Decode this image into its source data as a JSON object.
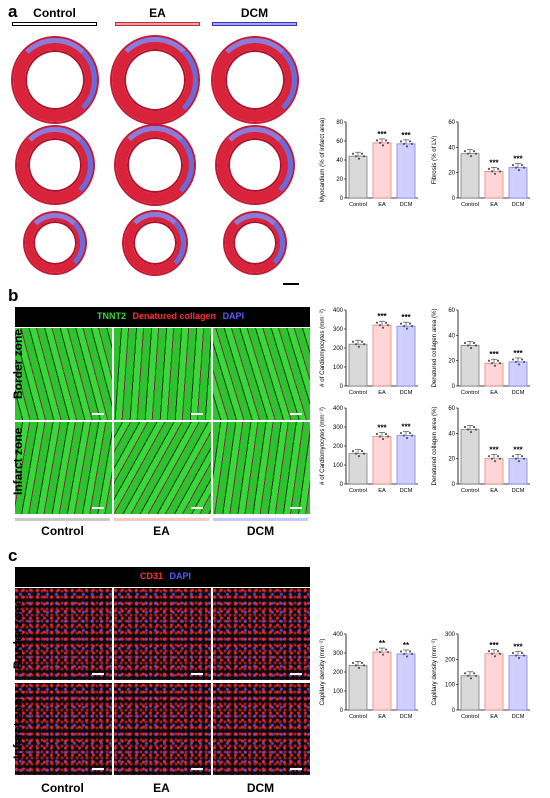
{
  "panels": {
    "a": "a",
    "b": "b",
    "c": "c"
  },
  "groups": {
    "control": "Control",
    "ea": "EA",
    "dcm": "DCM"
  },
  "colors": {
    "control": "#d9d9d9",
    "ea": "#ffd6d6",
    "dcm": "#cfd0ff",
    "control_edge": "#7f7f7f",
    "ea_edge": "#f08080",
    "dcm_edge": "#8080f0"
  },
  "legend_b": {
    "tnnt2": "TNNT2",
    "collagen": "Denatured collagen",
    "dapi": "DAPI"
  },
  "legend_c": {
    "cd31": "CD31",
    "dapi": "DAPI"
  },
  "zones": {
    "border": "Border zone",
    "infarct": "Infarct zone"
  },
  "chart_data": [
    {
      "type": "bar",
      "ylabel": "Myocardium (% of infarct area)",
      "ylim": [
        0,
        80
      ],
      "yticks": [
        0,
        20,
        40,
        60,
        80
      ],
      "categories": [
        "Control",
        "EA",
        "DCM"
      ],
      "values": [
        44,
        58,
        57
      ],
      "sig": [
        "",
        "***",
        "***"
      ]
    },
    {
      "type": "bar",
      "ylabel": "Fibrosis (% of LV)",
      "ylim": [
        0,
        60
      ],
      "yticks": [
        0,
        20,
        40,
        60
      ],
      "categories": [
        "Control",
        "EA",
        "DCM"
      ],
      "values": [
        35,
        21,
        24
      ],
      "sig": [
        "",
        "***",
        "***"
      ]
    },
    {
      "type": "bar",
      "ylabel": "# of Cardiomyocytes (mm⁻²)",
      "ylim": [
        0,
        400
      ],
      "yticks": [
        0,
        100,
        200,
        300,
        400
      ],
      "categories": [
        "Control",
        "EA",
        "DCM"
      ],
      "values": [
        220,
        320,
        315
      ],
      "sig": [
        "",
        "***",
        "***"
      ]
    },
    {
      "type": "bar",
      "ylabel": "Denatured collagen area (%)",
      "ylim": [
        0,
        60
      ],
      "yticks": [
        0,
        20,
        40,
        60
      ],
      "categories": [
        "Control",
        "EA",
        "DCM"
      ],
      "values": [
        32,
        18,
        19
      ],
      "sig": [
        "",
        "***",
        "***"
      ]
    },
    {
      "type": "bar",
      "ylabel": "# of Cardiomyocytes (mm⁻²)",
      "ylim": [
        0,
        400
      ],
      "yticks": [
        0,
        100,
        200,
        300,
        400
      ],
      "categories": [
        "Control",
        "EA",
        "DCM"
      ],
      "values": [
        160,
        250,
        255
      ],
      "sig": [
        "",
        "***",
        "***"
      ]
    },
    {
      "type": "bar",
      "ylabel": "Denatured collagen area (%)",
      "ylim": [
        0,
        60
      ],
      "yticks": [
        0,
        20,
        40,
        60
      ],
      "categories": [
        "Control",
        "EA",
        "DCM"
      ],
      "values": [
        43,
        20,
        20
      ],
      "sig": [
        "",
        "***",
        "***"
      ]
    },
    {
      "type": "bar",
      "ylabel": "Capillary density (mm⁻²)",
      "ylim": [
        0,
        400
      ],
      "yticks": [
        0,
        100,
        200,
        300,
        400
      ],
      "categories": [
        "Control",
        "EA",
        "DCM"
      ],
      "values": [
        235,
        305,
        295
      ],
      "sig": [
        "",
        "**",
        "**"
      ]
    },
    {
      "type": "bar",
      "ylabel": "Capillary density (mm⁻²)",
      "ylim": [
        0,
        300
      ],
      "yticks": [
        0,
        100,
        200,
        300
      ],
      "categories": [
        "Control",
        "EA",
        "DCM"
      ],
      "values": [
        135,
        222,
        215
      ],
      "sig": [
        "",
        "***",
        "***"
      ]
    }
  ]
}
